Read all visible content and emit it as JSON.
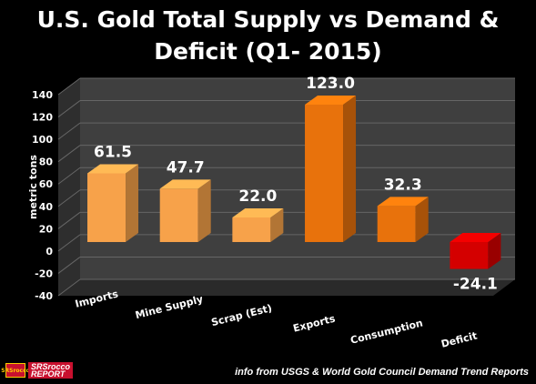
{
  "title_line1": "U.S. Gold Total Supply vs Demand &",
  "title_line2": "Deficit (Q1- 2015)",
  "source": "info from USGS & World Gold Council Demand Trend Reports",
  "logo": {
    "mark": "SRSrocco",
    "line1": "SRSrocco",
    "line2": "REPORT"
  },
  "chart_data": {
    "type": "bar",
    "title": "U.S. Gold Total Supply vs Demand & Deficit (Q1- 2015)",
    "xlabel": "",
    "ylabel": "metric tons",
    "ylim": [
      -40,
      140
    ],
    "yticks": [
      140,
      120,
      100,
      80,
      60,
      40,
      20,
      0,
      -20,
      -40
    ],
    "grid": true,
    "legend": "none",
    "categories": [
      "Imports",
      "Mine Supply",
      "Scrap (Est)",
      "Exports",
      "Consumption",
      "Deficit"
    ],
    "values": [
      61.5,
      47.7,
      22.0,
      123.0,
      32.3,
      -24.1
    ],
    "value_labels": [
      "61.5",
      "47.7",
      "22.0",
      "123.0",
      "32.3",
      "-24.1"
    ],
    "colors": [
      "#f7a24a",
      "#f7a24a",
      "#f7a24a",
      "#e8720c",
      "#e8720c",
      "#d40000"
    ]
  }
}
